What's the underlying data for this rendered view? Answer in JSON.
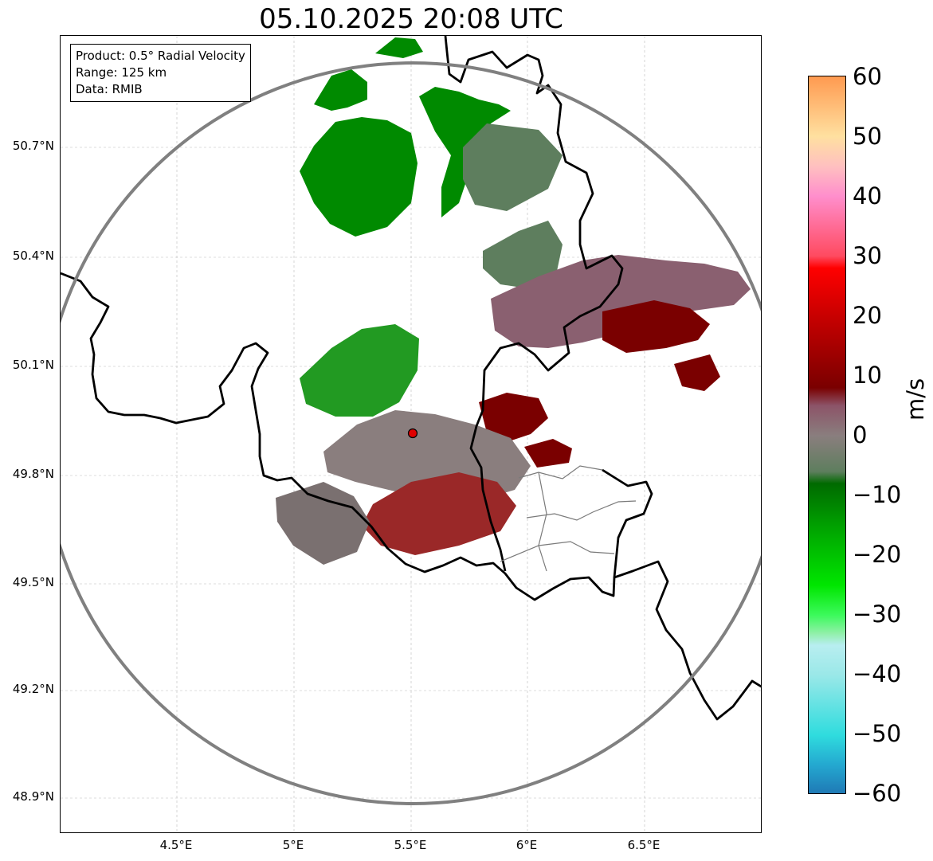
{
  "title": "05.10.2025 20:08 UTC",
  "info": {
    "product": "Product: 0.5° Radial Velocity",
    "range": "Range: 125 km",
    "source": "Data: RMIB"
  },
  "map": {
    "y_ticks": [
      "50.7°N",
      "50.4°N",
      "50.1°N",
      "49.8°N",
      "49.5°N",
      "49.2°N",
      "48.9°N"
    ],
    "x_ticks": [
      "4.5°E",
      "5°E",
      "5.5°E",
      "6°E",
      "6.5°E"
    ],
    "radar_site": {
      "lon": 5.505,
      "lat": 49.914
    },
    "range_ring_km": 125,
    "colors": {
      "border": "#000000",
      "range_ring": "#808080",
      "grid": "#bbbbbb",
      "site": "#e00000"
    }
  },
  "colorbar": {
    "label": "m/s",
    "ticks": [
      "60",
      "50",
      "40",
      "30",
      "20",
      "10",
      "0",
      "−10",
      "−20",
      "−30",
      "−40",
      "−50",
      "−60"
    ],
    "vmin": -60,
    "vmax": 60,
    "stops": [
      {
        "v": -60,
        "c": "#1f77b4"
      },
      {
        "v": -55,
        "c": "#24a8d0"
      },
      {
        "v": -50,
        "c": "#2fdcde"
      },
      {
        "v": -40,
        "c": "#9ae8e8"
      },
      {
        "v": -35,
        "c": "#b8eef0"
      },
      {
        "v": -33,
        "c": "#90f0a8"
      },
      {
        "v": -30,
        "c": "#3cfa5c"
      },
      {
        "v": -25,
        "c": "#00e600"
      },
      {
        "v": -15,
        "c": "#00a000"
      },
      {
        "v": -8,
        "c": "#006a00"
      },
      {
        "v": -6,
        "c": "#5e7e5e"
      },
      {
        "v": 0,
        "c": "#8a7e7e"
      },
      {
        "v": 5,
        "c": "#8c5468"
      },
      {
        "v": 8,
        "c": "#7a0000"
      },
      {
        "v": 20,
        "c": "#c80000"
      },
      {
        "v": 28,
        "c": "#ff0000"
      },
      {
        "v": 30,
        "c": "#ff4a60"
      },
      {
        "v": 40,
        "c": "#ff8ecc"
      },
      {
        "v": 45,
        "c": "#ffc0c0"
      },
      {
        "v": 50,
        "c": "#ffe0a0"
      },
      {
        "v": 60,
        "c": "#ff9a50"
      }
    ]
  }
}
